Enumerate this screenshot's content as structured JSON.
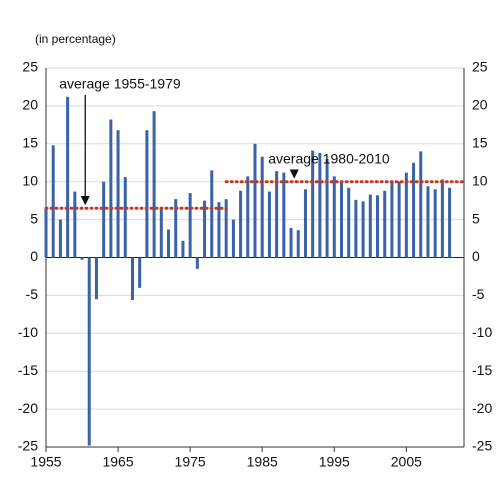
{
  "chart_data": {
    "type": "bar",
    "subtitle": "(in percentage)",
    "x": [
      1955,
      1956,
      1957,
      1958,
      1959,
      1960,
      1961,
      1962,
      1963,
      1964,
      1965,
      1966,
      1967,
      1968,
      1969,
      1970,
      1971,
      1972,
      1973,
      1974,
      1975,
      1976,
      1977,
      1978,
      1979,
      1980,
      1981,
      1982,
      1983,
      1984,
      1985,
      1986,
      1987,
      1988,
      1989,
      1990,
      1991,
      1992,
      1993,
      1994,
      1995,
      1996,
      1997,
      1998,
      1999,
      2000,
      2001,
      2002,
      2003,
      2004,
      2005,
      2006,
      2007,
      2008,
      2009,
      2010,
      2011
    ],
    "values": [
      6.5,
      14.8,
      5,
      21.2,
      8.7,
      -0.3,
      -24.8,
      -5.5,
      10,
      18.2,
      16.8,
      10.6,
      -5.6,
      -4,
      16.8,
      19.3,
      6.5,
      3.7,
      7.7,
      2.2,
      8.5,
      -1.5,
      7.5,
      11.5,
      7.3,
      7.7,
      5,
      8.8,
      10.7,
      15,
      13.3,
      8.7,
      11.4,
      11.2,
      3.9,
      3.6,
      9,
      14.1,
      13.8,
      13,
      10.7,
      10,
      9.2,
      7.6,
      7.4,
      8.3,
      8.2,
      8.8,
      9.9,
      10,
      11.2,
      12.5,
      14,
      9.4,
      9,
      10.3,
      9.2
    ],
    "color": "#3a62a7",
    "xlim": [
      1955,
      2013
    ],
    "xticks": [
      1955,
      1965,
      1975,
      1985,
      1995,
      2005
    ],
    "ylim": [
      -25,
      25
    ],
    "yticks": [
      -25,
      -20,
      -15,
      -10,
      -5,
      0,
      5,
      10,
      15,
      20,
      25
    ],
    "grid": true,
    "averages": [
      {
        "label": "average 1955-1979",
        "value": 6.5,
        "start": 1955,
        "end": 1980,
        "arrow_x": 1961
      },
      {
        "label": "average 1980-2010",
        "value": 10,
        "start": 1980,
        "end": 2013,
        "arrow_x": 1990
      }
    ],
    "average_color": "#c0392b"
  }
}
